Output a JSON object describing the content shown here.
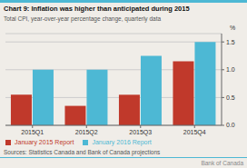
{
  "chart_data": {
    "type": "bar",
    "title": "Chart 9: Inflation was higher than anticipated during 2015",
    "subtitle": "Total CPI, year-over-year percentage change, quarterly data",
    "categories": [
      "2015Q1",
      "2015Q2",
      "2015Q3",
      "2015Q4"
    ],
    "series": [
      {
        "name": "January 2015 Report",
        "color": "#c0392b",
        "values": [
          0.55,
          0.35,
          0.55,
          1.15
        ]
      },
      {
        "name": "January 2016 Report",
        "color": "#4db8d4",
        "values": [
          1.0,
          1.0,
          1.25,
          1.5
        ]
      }
    ],
    "ylabel": "%",
    "ylim": [
      0.0,
      1.65
    ],
    "yticks": [
      {
        "value": 0.0,
        "label": "0.0"
      },
      0.5,
      {
        "value": 1.0,
        "label": "1.0"
      },
      1.5
    ],
    "grid": true,
    "legend": "bottom",
    "annotations": [
      "Sources: Statistics Canada and Bank of Canada projections",
      "Bank of Canada"
    ]
  }
}
